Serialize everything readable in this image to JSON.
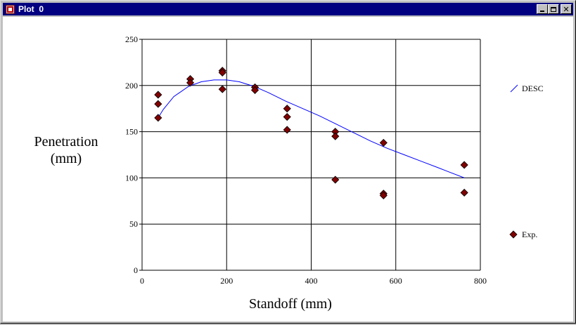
{
  "window": {
    "title": "Plot  0",
    "icon": "plot-app-icon",
    "buttons": [
      "minimize-icon",
      "maximize-icon",
      "close-icon"
    ]
  },
  "chart_data": {
    "type": "scatter",
    "xlabel": "Standoff (mm)",
    "ylabel_lines": [
      "Penetration",
      "(mm)"
    ],
    "xlim": [
      0,
      800
    ],
    "ylim": [
      0,
      250
    ],
    "x_ticks": [
      0,
      200,
      400,
      600,
      800
    ],
    "y_ticks": [
      0,
      50,
      100,
      150,
      200,
      250
    ],
    "grid": true,
    "legend_placement": "right",
    "series": [
      {
        "name": "DESC",
        "kind": "line",
        "color": "#0000ff",
        "points": [
          [
            38,
            165
          ],
          [
            50,
            174
          ],
          [
            75,
            188
          ],
          [
            110,
            199
          ],
          [
            140,
            204
          ],
          [
            170,
            206
          ],
          [
            200,
            206
          ],
          [
            230,
            204
          ],
          [
            265,
            199
          ],
          [
            300,
            192
          ],
          [
            340,
            183
          ],
          [
            380,
            175
          ],
          [
            420,
            167
          ],
          [
            460,
            158
          ],
          [
            500,
            149
          ],
          [
            540,
            140
          ],
          [
            580,
            132
          ],
          [
            620,
            125
          ],
          [
            660,
            118
          ],
          [
            700,
            111
          ],
          [
            762,
            100
          ]
        ]
      },
      {
        "name": "Exp.",
        "kind": "marker",
        "color": "#800000",
        "points": [
          [
            38,
            190
          ],
          [
            38,
            180
          ],
          [
            38,
            165
          ],
          [
            114,
            207
          ],
          [
            114,
            203
          ],
          [
            190,
            216
          ],
          [
            190,
            214
          ],
          [
            190,
            196
          ],
          [
            267,
            198
          ],
          [
            267,
            195
          ],
          [
            343,
            175
          ],
          [
            343,
            166
          ],
          [
            343,
            152
          ],
          [
            457,
            150
          ],
          [
            457,
            145
          ],
          [
            457,
            98
          ],
          [
            571,
            138
          ],
          [
            571,
            83
          ],
          [
            571,
            81
          ],
          [
            762,
            114
          ],
          [
            762,
            84
          ]
        ]
      }
    ]
  }
}
